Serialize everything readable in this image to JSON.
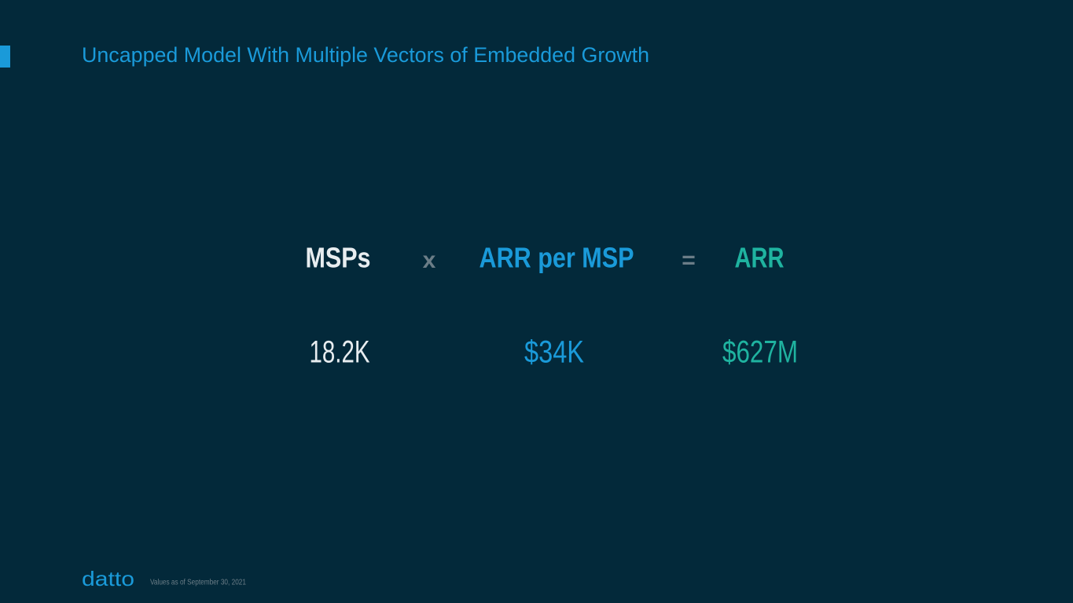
{
  "header": {
    "title": "Uncapped Model With Multiple Vectors of Embedded Growth"
  },
  "equation": {
    "terms": [
      "MSPs",
      "ARR per MSP",
      "ARR"
    ],
    "operators": [
      "x",
      "="
    ],
    "values": [
      "18.2K",
      "$34K",
      "$627M"
    ]
  },
  "footer": {
    "logo": "datto",
    "note": "Values as of September 30, 2021"
  }
}
